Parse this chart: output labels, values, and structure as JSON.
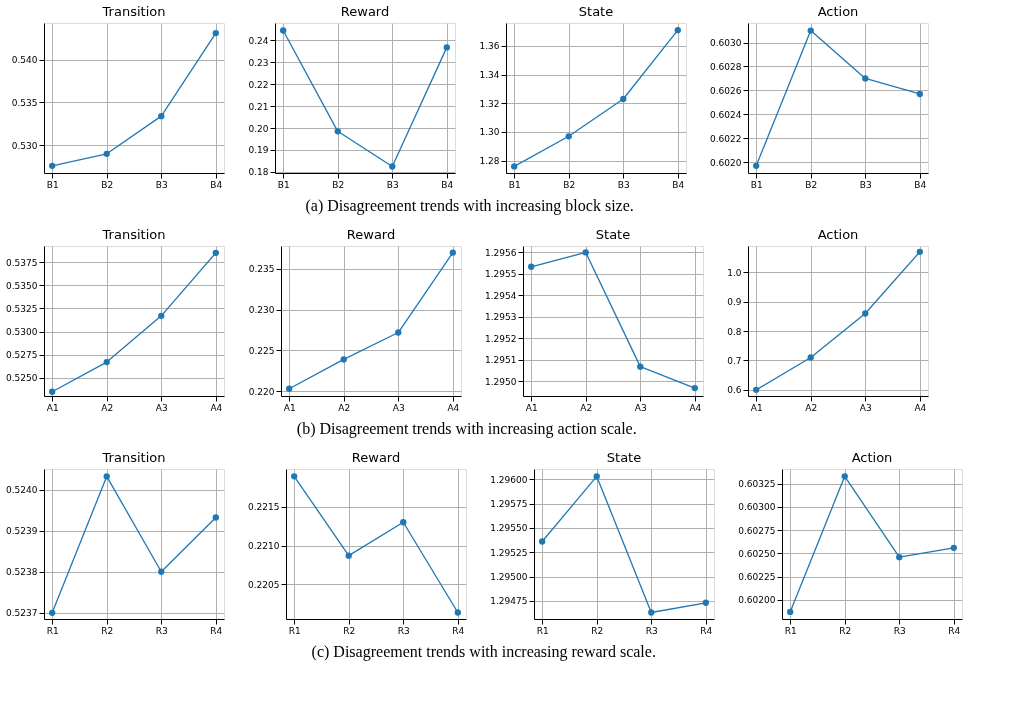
{
  "chart_data": [
    {
      "type": "line",
      "title": "Transition",
      "categories": [
        "B1",
        "B2",
        "B3",
        "B4"
      ],
      "series": [
        {
          "color": "#1f77b4",
          "values": [
            0.5276,
            0.529,
            0.5334,
            0.5431
          ]
        }
      ],
      "ylim": [
        0.52676,
        0.54428
      ],
      "yticks": [
        {
          "value": 0.53,
          "label": "0.530"
        },
        {
          "value": 0.535,
          "label": "0.535"
        },
        {
          "value": 0.54,
          "label": "0.540"
        }
      ],
      "grid": true,
      "marker": "circle",
      "annotations": [
        "(a) Disagreement trends with increasing block size."
      ]
    },
    {
      "type": "line",
      "title": "Reward",
      "categories": [
        "B1",
        "B2",
        "B3",
        "B4"
      ],
      "series": [
        {
          "color": "#1f77b4",
          "values": [
            0.2444,
            0.1985,
            0.1825,
            0.2367
          ]
        }
      ],
      "ylim": [
        0.17953,
        0.2478
      ],
      "yticks": [
        {
          "value": 0.18,
          "label": "0.18"
        },
        {
          "value": 0.19,
          "label": "0.19"
        },
        {
          "value": 0.2,
          "label": "0.20"
        },
        {
          "value": 0.21,
          "label": "0.21"
        },
        {
          "value": 0.22,
          "label": "0.22"
        },
        {
          "value": 0.23,
          "label": "0.23"
        },
        {
          "value": 0.24,
          "label": "0.24"
        }
      ],
      "grid": true,
      "marker": "circle"
    },
    {
      "type": "line",
      "title": "State",
      "categories": [
        "B1",
        "B2",
        "B3",
        "B4"
      ],
      "series": [
        {
          "color": "#1f77b4",
          "values": [
            1.276,
            1.297,
            1.323,
            1.371
          ]
        }
      ],
      "ylim": [
        1.2714,
        1.376
      ],
      "yticks": [
        {
          "value": 1.28,
          "label": "1.28"
        },
        {
          "value": 1.3,
          "label": "1.30"
        },
        {
          "value": 1.32,
          "label": "1.32"
        },
        {
          "value": 1.34,
          "label": "1.34"
        },
        {
          "value": 1.36,
          "label": "1.36"
        }
      ],
      "grid": true,
      "marker": "circle"
    },
    {
      "type": "line",
      "title": "Action",
      "categories": [
        "B1",
        "B2",
        "B3",
        "B4"
      ],
      "series": [
        {
          "color": "#1f77b4",
          "values": [
            0.60197,
            0.6031,
            0.6027,
            0.60257
          ]
        }
      ],
      "ylim": [
        0.60191,
        0.603163
      ],
      "yticks": [
        {
          "value": 0.602,
          "label": "0.6020"
        },
        {
          "value": 0.6022,
          "label": "0.6022"
        },
        {
          "value": 0.6024,
          "label": "0.6024"
        },
        {
          "value": 0.6026,
          "label": "0.6026"
        },
        {
          "value": 0.6028,
          "label": "0.6028"
        },
        {
          "value": 0.603,
          "label": "0.6030"
        }
      ],
      "grid": true,
      "marker": "circle"
    },
    {
      "type": "line",
      "title": "Transition",
      "categories": [
        "A1",
        "A2",
        "A3",
        "A4"
      ],
      "series": [
        {
          "color": "#1f77b4",
          "values": [
            0.5235,
            0.5267,
            0.5317,
            0.5385
          ]
        }
      ],
      "ylim": [
        0.52304,
        0.53924
      ],
      "yticks": [
        {
          "value": 0.525,
          "label": "0.5250"
        },
        {
          "value": 0.5275,
          "label": "0.5275"
        },
        {
          "value": 0.53,
          "label": "0.5300"
        },
        {
          "value": 0.5325,
          "label": "0.5325"
        },
        {
          "value": 0.535,
          "label": "0.5350"
        },
        {
          "value": 0.5375,
          "label": "0.5375"
        }
      ],
      "grid": true,
      "marker": "circle",
      "annotations": [
        "(b) Disagreement trends with increasing action scale."
      ]
    },
    {
      "type": "line",
      "title": "Reward",
      "categories": [
        "A1",
        "A2",
        "A3",
        "A4"
      ],
      "series": [
        {
          "color": "#1f77b4",
          "values": [
            0.2203,
            0.2239,
            0.2272,
            0.237
          ]
        }
      ],
      "ylim": [
        0.21941,
        0.23782
      ],
      "yticks": [
        {
          "value": 0.22,
          "label": "0.220"
        },
        {
          "value": 0.225,
          "label": "0.225"
        },
        {
          "value": 0.23,
          "label": "0.230"
        },
        {
          "value": 0.235,
          "label": "0.235"
        }
      ],
      "grid": true,
      "marker": "circle"
    },
    {
      "type": "line",
      "title": "State",
      "categories": [
        "A1",
        "A2",
        "A3",
        "A4"
      ],
      "series": [
        {
          "color": "#1f77b4",
          "values": [
            1.295533,
            1.2956,
            1.295067,
            1.294967
          ]
        }
      ],
      "ylim": [
        1.29493,
        1.29563
      ],
      "yticks": [
        {
          "value": 1.295,
          "label": "1.2950"
        },
        1.2951,
        1.2952,
        1.2953,
        1.2954,
        1.2955,
        1.2956
      ],
      "grid": true,
      "marker": "circle"
    },
    {
      "type": "line",
      "title": "Action",
      "categories": [
        "A1",
        "A2",
        "A3",
        "A4"
      ],
      "series": [
        {
          "color": "#1f77b4",
          "values": [
            0.6,
            0.71,
            0.86,
            1.07
          ]
        }
      ],
      "ylim": [
        0.579,
        1.0898
      ],
      "yticks": [
        0.6,
        0.7,
        0.8,
        0.9,
        {
          "value": 1.0,
          "label": "1.0"
        }
      ],
      "grid": true,
      "marker": "circle"
    },
    {
      "type": "line",
      "title": "Transition",
      "categories": [
        "R1",
        "R2",
        "R3",
        "R4"
      ],
      "series": [
        {
          "color": "#1f77b4",
          "values": [
            0.5237,
            0.524032,
            0.5238,
            0.523932
          ]
        }
      ],
      "ylim": [
        0.523685,
        0.52405
      ],
      "yticks": [
        0.5237,
        0.5238,
        0.5239,
        {
          "value": 0.524,
          "label": "0.5240"
        }
      ],
      "grid": true,
      "marker": "circle",
      "annotations": [
        "(c) Disagreement trends with increasing reward scale."
      ]
    },
    {
      "type": "line",
      "title": "Reward",
      "categories": [
        "R1",
        "R2",
        "R3",
        "R4"
      ],
      "series": [
        {
          "color": "#1f77b4",
          "values": [
            0.22189,
            0.22087,
            0.2213,
            0.22014
          ]
        }
      ],
      "ylim": [
        0.220056,
        0.221984
      ],
      "yticks": [
        0.2205,
        {
          "value": 0.221,
          "label": "0.2210"
        },
        0.2215
      ],
      "grid": true,
      "marker": "circle"
    },
    {
      "type": "line",
      "title": "State",
      "categories": [
        "R1",
        "R2",
        "R3",
        "R4"
      ],
      "series": [
        {
          "color": "#1f77b4",
          "values": [
            1.29536,
            1.29603,
            1.29463,
            1.29473
          ]
        }
      ],
      "ylim": [
        1.294563,
        1.296106
      ],
      "yticks": [
        1.29475,
        {
          "value": 1.295,
          "label": "1.29500"
        },
        1.29525,
        {
          "value": 1.2955,
          "label": "1.29550"
        },
        1.29575,
        {
          "value": 1.296,
          "label": "1.29600"
        }
      ],
      "grid": true,
      "marker": "circle"
    },
    {
      "type": "line",
      "title": "Action",
      "categories": [
        "R1",
        "R2",
        "R3",
        "R4"
      ],
      "series": [
        {
          "color": "#1f77b4",
          "values": [
            0.60187,
            0.60333,
            0.60246,
            0.60256
          ]
        }
      ],
      "ylim": [
        0.601794,
        0.603409
      ],
      "yticks": [
        {
          "value": 0.602,
          "label": "0.60200"
        },
        0.60225,
        {
          "value": 0.6025,
          "label": "0.60250"
        },
        0.60275,
        {
          "value": 0.603,
          "label": "0.60300"
        },
        0.60325
      ],
      "grid": true,
      "marker": "circle"
    }
  ]
}
